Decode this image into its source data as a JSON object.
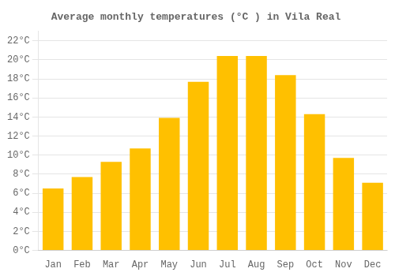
{
  "chart_data": {
    "type": "bar",
    "title": "Average monthly temperatures (°C ) in Vila Real",
    "categories": [
      "Jan",
      "Feb",
      "Mar",
      "Apr",
      "May",
      "Jun",
      "Jul",
      "Aug",
      "Sep",
      "Oct",
      "Nov",
      "Dec"
    ],
    "values": [
      6.5,
      7.7,
      9.3,
      10.7,
      13.9,
      17.7,
      20.4,
      20.4,
      18.4,
      14.3,
      9.7,
      7.1
    ],
    "color": "#FFC000",
    "ylim": [
      0,
      23
    ],
    "yticks": [
      {
        "value": 0,
        "label": "0°C"
      },
      {
        "value": 2,
        "label": "2°C"
      },
      {
        "value": 4,
        "label": "4°C"
      },
      {
        "value": 6,
        "label": "6°C"
      },
      {
        "value": 8,
        "label": "8°C"
      },
      {
        "value": 10,
        "label": "10°C"
      },
      {
        "value": 12,
        "label": "12°C"
      },
      {
        "value": 14,
        "label": "14°C"
      },
      {
        "value": 16,
        "label": "16°C"
      },
      {
        "value": 18,
        "label": "18°C"
      },
      {
        "value": 20,
        "label": "20°C"
      },
      {
        "value": 22,
        "label": "22°C"
      }
    ],
    "grid": true
  }
}
